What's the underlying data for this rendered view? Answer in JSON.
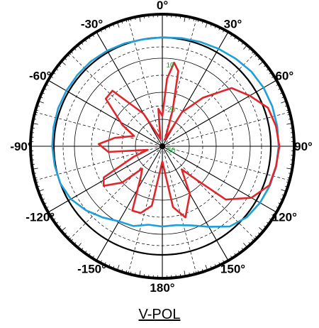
{
  "chart_data": {
    "type": "polar",
    "title": "V-POL",
    "angle_labels": [
      {
        "angle": 0,
        "text": "0°"
      },
      {
        "angle": 30,
        "text": "30°"
      },
      {
        "angle": 60,
        "text": "60°"
      },
      {
        "angle": 90,
        "text": "90°"
      },
      {
        "angle": 120,
        "text": "120°"
      },
      {
        "angle": 150,
        "text": "150°"
      },
      {
        "angle": 180,
        "text": "180°"
      },
      {
        "angle": -150,
        "text": "-150°"
      },
      {
        "angle": -120,
        "text": "-120°"
      },
      {
        "angle": -90,
        "text": "-90°"
      },
      {
        "angle": -60,
        "text": "-60°"
      },
      {
        "angle": -30,
        "text": "-30°"
      }
    ],
    "ring_labels": [
      "10",
      "-20",
      "-50"
    ],
    "rlim": [
      -50,
      30
    ],
    "series": [
      {
        "color": "#1e9fd8",
        "points": [
          [
            0,
            22.2
          ],
          [
            10,
            22.8
          ],
          [
            20,
            23.6
          ],
          [
            30,
            24.6
          ],
          [
            40,
            25.8
          ],
          [
            50,
            27.1
          ],
          [
            60,
            27.6
          ],
          [
            70,
            27.6
          ],
          [
            80,
            27.4
          ],
          [
            90,
            27.2
          ],
          [
            100,
            26.8
          ],
          [
            110,
            26.0
          ],
          [
            120,
            24.9
          ],
          [
            130,
            23.2
          ],
          [
            140,
            19.5
          ],
          [
            150,
            11.6
          ],
          [
            160,
            5.8
          ],
          [
            170,
            3.1
          ],
          [
            180,
            3.2
          ],
          [
            190,
            2.8
          ],
          [
            200,
            6.3
          ],
          [
            210,
            7.5
          ],
          [
            220,
            11.6
          ],
          [
            230,
            16.1
          ],
          [
            240,
            20.1
          ],
          [
            250,
            22.1
          ],
          [
            260,
            22.6
          ],
          [
            270,
            23.1
          ],
          [
            280,
            23.3
          ],
          [
            290,
            23.6
          ],
          [
            300,
            23.6
          ],
          [
            310,
            23.6
          ],
          [
            320,
            23.6
          ],
          [
            330,
            23.1
          ],
          [
            340,
            22.6
          ],
          [
            350,
            22.0
          ],
          [
            360,
            22.2
          ]
        ]
      },
      {
        "color": "#e0262b",
        "points": [
          [
            0,
            -30
          ],
          [
            4,
            -5
          ],
          [
            8,
            6.0
          ],
          [
            12,
            1
          ],
          [
            16,
            -25
          ],
          [
            22,
            -45
          ],
          [
            30,
            -24
          ],
          [
            40,
            -8
          ],
          [
            50,
            10
          ],
          [
            60,
            17
          ],
          [
            70,
            24.6
          ],
          [
            80,
            26.6
          ],
          [
            90,
            27.7
          ],
          [
            100,
            26.6
          ],
          [
            110,
            25.6
          ],
          [
            120,
            18.3
          ],
          [
            130,
            5
          ],
          [
            135,
            -20
          ],
          [
            140,
            -30
          ],
          [
            150,
            -13.5
          ],
          [
            162,
            -0.4
          ],
          [
            170,
            -9
          ],
          [
            180,
            -40
          ],
          [
            190,
            -10
          ],
          [
            198,
            -3.5
          ],
          [
            205,
            -2.9
          ],
          [
            215,
            -25
          ],
          [
            222,
            -30
          ],
          [
            228,
            -14
          ],
          [
            236,
            -3
          ],
          [
            242,
            -6
          ],
          [
            250,
            -30
          ],
          [
            256,
            -40
          ],
          [
            264,
            -14
          ],
          [
            272,
            -7.7
          ],
          [
            280,
            -18
          ],
          [
            290,
            -30
          ],
          [
            298,
            -20
          ],
          [
            310,
            -1
          ],
          [
            318,
            -0.5
          ],
          [
            330,
            -25
          ],
          [
            345,
            -45
          ],
          [
            354,
            -25
          ],
          [
            360,
            -30
          ]
        ]
      }
    ]
  }
}
